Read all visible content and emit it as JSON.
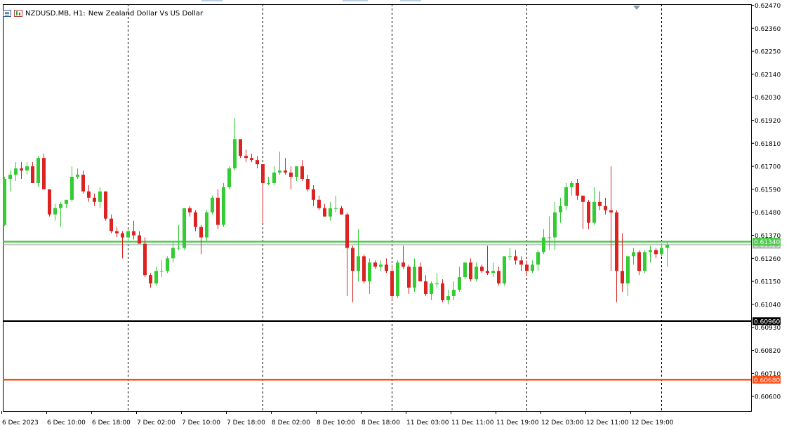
{
  "header": {
    "symbol_label": "NZDUSD.MB, H1:",
    "description": "New Zealand Dollar Vs US Dollar"
  },
  "icons": [
    "indicator-list-icon",
    "chart-type-icon"
  ],
  "colors": {
    "background": "#ffffff",
    "bull": "#33cc33",
    "bear": "#dd2222",
    "green_line": "#4cc84c",
    "black_line": "#000000",
    "orange_line": "#ff4a10",
    "grid": "#000000"
  },
  "chart_data": {
    "type": "candlestick",
    "symbol": "NZDUSD.MB",
    "timeframe": "H1",
    "ylim": [
      0.6053,
      0.62475
    ],
    "y_ticks": [
      "0.62470",
      "0.62360",
      "0.62250",
      "0.62140",
      "0.62030",
      "0.61920",
      "0.61810",
      "0.61700",
      "0.61590",
      "0.61480",
      "0.61370",
      "0.61260",
      "0.61150",
      "0.61040",
      "0.60930",
      "0.60820",
      "0.60710",
      "0.60600"
    ],
    "x_labels": [
      "6 Dec 2023",
      "6 Dec 10:00",
      "6 Dec 18:00",
      "7 Dec 02:00",
      "7 Dec 10:00",
      "7 Dec 18:00",
      "8 Dec 02:00",
      "8 Dec 10:00",
      "8 Dec 18:00",
      "11 Dec 03:00",
      "11 Dec 11:00",
      "11 Dec 19:00",
      "12 Dec 03:00",
      "12 Dec 11:00",
      "12 Dec 19:00"
    ],
    "session_separators": [
      "6 Dec 18:00",
      "7 Dec 18:00",
      "8 Dec 18:00",
      "11 Dec 19:00",
      "12 Dec 19:00"
    ],
    "horizontal_lines": [
      {
        "label": "0.61340",
        "value": 0.6134,
        "color": "#4cc84c"
      },
      {
        "label": "0.60960",
        "value": 0.6096,
        "color": "#000000"
      },
      {
        "label": "0.60680",
        "value": 0.6068,
        "color": "#ff4a10"
      }
    ],
    "bid_label": "0.61325",
    "bid_value": 0.61325,
    "candles": [
      [
        0.6142,
        0.6165,
        0.61415,
        0.6164
      ],
      [
        0.6164,
        0.6168,
        0.6158,
        0.6166
      ],
      [
        0.6166,
        0.6172,
        0.6163,
        0.6169
      ],
      [
        0.6169,
        0.6172,
        0.6164,
        0.6168
      ],
      [
        0.6168,
        0.6172,
        0.6166,
        0.617
      ],
      [
        0.617,
        0.6172,
        0.6162,
        0.6162
      ],
      [
        0.6162,
        0.6175,
        0.616,
        0.6174
      ],
      [
        0.6174,
        0.6176,
        0.6159,
        0.6159
      ],
      [
        0.6159,
        0.6159,
        0.6146,
        0.6147
      ],
      [
        0.6147,
        0.6152,
        0.6144,
        0.615
      ],
      [
        0.615,
        0.6153,
        0.6141,
        0.6152
      ],
      [
        0.6152,
        0.6154,
        0.615,
        0.6154
      ],
      [
        0.6154,
        0.617,
        0.6153,
        0.6165
      ],
      [
        0.6165,
        0.6169,
        0.6164,
        0.6166
      ],
      [
        0.6166,
        0.6168,
        0.6157,
        0.6158
      ],
      [
        0.6158,
        0.6161,
        0.6153,
        0.6155
      ],
      [
        0.6155,
        0.6157,
        0.6151,
        0.6153
      ],
      [
        0.6153,
        0.616,
        0.615,
        0.6158
      ],
      [
        0.6158,
        0.6158,
        0.6144,
        0.6145
      ],
      [
        0.6145,
        0.6147,
        0.6138,
        0.6139
      ],
      [
        0.6139,
        0.6141,
        0.6136,
        0.6138
      ],
      [
        0.6138,
        0.6139,
        0.6126,
        0.6136
      ],
      [
        0.6136,
        0.614,
        0.6134,
        0.6139
      ],
      [
        0.6139,
        0.6144,
        0.6135,
        0.6137
      ],
      [
        0.6137,
        0.6139,
        0.6133,
        0.6133
      ],
      [
        0.6133,
        0.6136,
        0.6117,
        0.6118
      ],
      [
        0.6118,
        0.6119,
        0.6112,
        0.6114
      ],
      [
        0.6114,
        0.6122,
        0.6113,
        0.612
      ],
      [
        0.612,
        0.6125,
        0.6117,
        0.612
      ],
      [
        0.612,
        0.6127,
        0.6119,
        0.6126
      ],
      [
        0.6126,
        0.6134,
        0.6124,
        0.6131
      ],
      [
        0.6131,
        0.6142,
        0.613,
        0.6131
      ],
      [
        0.6131,
        0.615,
        0.613,
        0.615
      ],
      [
        0.615,
        0.6151,
        0.6146,
        0.6148
      ],
      [
        0.6148,
        0.6149,
        0.6139,
        0.6141
      ],
      [
        0.6141,
        0.6142,
        0.6128,
        0.6136
      ],
      [
        0.6136,
        0.6149,
        0.6134,
        0.6148
      ],
      [
        0.6148,
        0.6156,
        0.6147,
        0.6155
      ],
      [
        0.6155,
        0.6159,
        0.614,
        0.6142
      ],
      [
        0.6142,
        0.6162,
        0.6141,
        0.616
      ],
      [
        0.616,
        0.617,
        0.6159,
        0.6169
      ],
      [
        0.6169,
        0.6193,
        0.6168,
        0.6183
      ],
      [
        0.6183,
        0.6183,
        0.6174,
        0.6175
      ],
      [
        0.6175,
        0.6178,
        0.6172,
        0.6174
      ],
      [
        0.6174,
        0.6176,
        0.6172,
        0.6173
      ],
      [
        0.6173,
        0.6175,
        0.6169,
        0.6171
      ],
      [
        0.6171,
        0.6171,
        0.6143,
        0.6162
      ],
      [
        0.6162,
        0.6165,
        0.6161,
        0.6162
      ],
      [
        0.6162,
        0.617,
        0.6161,
        0.6167
      ],
      [
        0.6167,
        0.6177,
        0.6166,
        0.6168
      ],
      [
        0.6168,
        0.6174,
        0.6166,
        0.6167
      ],
      [
        0.6167,
        0.617,
        0.6159,
        0.6165
      ],
      [
        0.6165,
        0.617,
        0.6163,
        0.617
      ],
      [
        0.617,
        0.6173,
        0.6163,
        0.6164
      ],
      [
        0.6164,
        0.6166,
        0.6158,
        0.6159
      ],
      [
        0.6159,
        0.6161,
        0.6151,
        0.6154
      ],
      [
        0.6154,
        0.6156,
        0.6149,
        0.615
      ],
      [
        0.615,
        0.6152,
        0.6146,
        0.6146
      ],
      [
        0.6146,
        0.6153,
        0.6144,
        0.615
      ],
      [
        0.615,
        0.6156,
        0.6148,
        0.615
      ],
      [
        0.615,
        0.6151,
        0.6147,
        0.6147
      ],
      [
        0.6147,
        0.6148,
        0.6108,
        0.6131
      ],
      [
        0.6131,
        0.6132,
        0.6105,
        0.612
      ],
      [
        0.612,
        0.614,
        0.6115,
        0.6127
      ],
      [
        0.6127,
        0.6128,
        0.6114,
        0.6115
      ],
      [
        0.6115,
        0.6126,
        0.6109,
        0.6124
      ],
      [
        0.6124,
        0.6125,
        0.6121,
        0.6122
      ],
      [
        0.6122,
        0.6125,
        0.612,
        0.6123
      ],
      [
        0.6123,
        0.6126,
        0.6119,
        0.612
      ],
      [
        0.612,
        0.6123,
        0.6106,
        0.6108
      ],
      [
        0.6108,
        0.6125,
        0.6107,
        0.6124
      ],
      [
        0.6124,
        0.6132,
        0.6121,
        0.6122
      ],
      [
        0.6122,
        0.6123,
        0.6109,
        0.6112
      ],
      [
        0.6112,
        0.6126,
        0.611,
        0.6122
      ],
      [
        0.6122,
        0.6124,
        0.6115,
        0.6115
      ],
      [
        0.6115,
        0.6118,
        0.6108,
        0.6109
      ],
      [
        0.6109,
        0.6115,
        0.6106,
        0.6114
      ],
      [
        0.6114,
        0.6119,
        0.6112,
        0.6114
      ],
      [
        0.6114,
        0.6116,
        0.6105,
        0.6106
      ],
      [
        0.6106,
        0.6111,
        0.6104,
        0.6108
      ],
      [
        0.6108,
        0.6115,
        0.6106,
        0.6111
      ],
      [
        0.6111,
        0.6122,
        0.611,
        0.6117
      ],
      [
        0.6117,
        0.6124,
        0.6116,
        0.6124
      ],
      [
        0.6124,
        0.6126,
        0.6115,
        0.6116
      ],
      [
        0.6116,
        0.6124,
        0.6115,
        0.6122
      ],
      [
        0.6122,
        0.6123,
        0.6119,
        0.612
      ],
      [
        0.612,
        0.6132,
        0.6118,
        0.6119
      ],
      [
        0.6119,
        0.6124,
        0.6117,
        0.612
      ],
      [
        0.612,
        0.6122,
        0.6113,
        0.6114
      ],
      [
        0.6114,
        0.6126,
        0.6113,
        0.6127
      ],
      [
        0.6127,
        0.6131,
        0.6125,
        0.6127
      ],
      [
        0.6127,
        0.613,
        0.6123,
        0.6125
      ],
      [
        0.6125,
        0.6127,
        0.612,
        0.6123
      ],
      [
        0.6123,
        0.6125,
        0.6118,
        0.612
      ],
      [
        0.612,
        0.6125,
        0.6119,
        0.6123
      ],
      [
        0.6123,
        0.613,
        0.612,
        0.6129
      ],
      [
        0.6129,
        0.614,
        0.6128,
        0.6136
      ],
      [
        0.6136,
        0.6146,
        0.613,
        0.6136
      ],
      [
        0.6136,
        0.6153,
        0.613,
        0.6148
      ],
      [
        0.6148,
        0.6155,
        0.6143,
        0.6151
      ],
      [
        0.6151,
        0.6162,
        0.6149,
        0.616
      ],
      [
        0.616,
        0.6163,
        0.6156,
        0.6162
      ],
      [
        0.6162,
        0.6164,
        0.6154,
        0.6156
      ],
      [
        0.6156,
        0.6156,
        0.614,
        0.6153
      ],
      [
        0.6153,
        0.6154,
        0.614,
        0.6143
      ],
      [
        0.6143,
        0.616,
        0.6142,
        0.6153
      ],
      [
        0.6153,
        0.6158,
        0.6149,
        0.6151
      ],
      [
        0.6151,
        0.6155,
        0.6147,
        0.6149
      ],
      [
        0.6149,
        0.617,
        0.612,
        0.6148
      ],
      [
        0.6148,
        0.6149,
        0.6105,
        0.612
      ],
      [
        0.612,
        0.6138,
        0.611,
        0.6114
      ],
      [
        0.6114,
        0.6126,
        0.6108,
        0.6127
      ],
      [
        0.6127,
        0.6131,
        0.6123,
        0.6129
      ],
      [
        0.6129,
        0.613,
        0.6118,
        0.612
      ],
      [
        0.612,
        0.613,
        0.6119,
        0.6129
      ],
      [
        0.6129,
        0.6132,
        0.6124,
        0.613
      ],
      [
        0.613,
        0.6131,
        0.6126,
        0.6128
      ],
      [
        0.6128,
        0.6133,
        0.6127,
        0.6131
      ],
      [
        0.6131,
        0.6134,
        0.6122,
        0.61325
      ]
    ]
  }
}
